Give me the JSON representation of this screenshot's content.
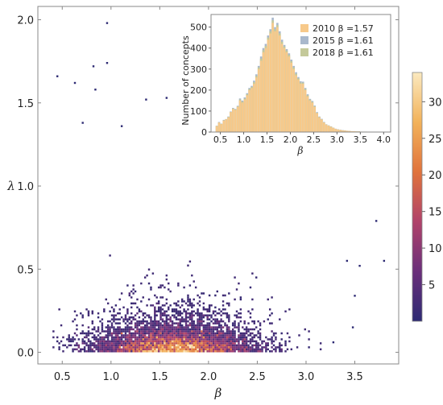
{
  "chart_data": [
    {
      "type": "heatmap",
      "xlabel": "β",
      "ylabel": "λ",
      "xlim": [
        0.25,
        3.95
      ],
      "ylim": [
        -0.07,
        2.08
      ],
      "xticks": [
        "0.5",
        "1.0",
        "1.5",
        "2.0",
        "2.5",
        "3.0",
        "3.5"
      ],
      "yticks": [
        "0.0",
        "0.5",
        "1.0",
        "1.5",
        "2.0"
      ],
      "density_peak": {
        "beta": 1.65,
        "lambda": 0.04
      },
      "colorbar": {
        "min": 0,
        "max": 34,
        "ticks": [
          "5",
          "10",
          "15",
          "20",
          "25",
          "30"
        ],
        "colors": [
          "#2d2a73",
          "#6a2f7a",
          "#b0426a",
          "#e0733c",
          "#f2b25a",
          "#fbe9bf"
        ]
      },
      "outliers": [
        {
          "beta": 0.96,
          "lambda": 1.98
        },
        {
          "beta": 0.96,
          "lambda": 1.74
        },
        {
          "beta": 0.82,
          "lambda": 1.72
        },
        {
          "beta": 0.45,
          "lambda": 1.66
        },
        {
          "beta": 0.63,
          "lambda": 1.62
        },
        {
          "beta": 0.84,
          "lambda": 1.58
        },
        {
          "beta": 1.36,
          "lambda": 1.52
        },
        {
          "beta": 1.57,
          "lambda": 1.53
        },
        {
          "beta": 0.71,
          "lambda": 1.38
        },
        {
          "beta": 1.11,
          "lambda": 1.36
        },
        {
          "beta": 3.72,
          "lambda": 0.79
        },
        {
          "beta": 3.8,
          "lambda": 0.55
        },
        {
          "beta": 3.55,
          "lambda": 0.52
        },
        {
          "beta": 3.42,
          "lambda": 0.55
        },
        {
          "beta": 3.5,
          "lambda": 0.34
        },
        {
          "beta": 3.48,
          "lambda": 0.15
        },
        {
          "beta": 3.28,
          "lambda": 0.06
        }
      ]
    },
    {
      "type": "bar",
      "title": "",
      "xlabel": "β",
      "ylabel": "Number of concepts",
      "xlim": [
        0.3,
        4.15
      ],
      "ylim": [
        0,
        560
      ],
      "xticks": [
        "0.5",
        "1.0",
        "1.5",
        "2.0",
        "2.5",
        "3.0",
        "3.5",
        "4.0"
      ],
      "yticks": [
        "0",
        "100",
        "200",
        "300",
        "400",
        "500"
      ],
      "bin_width": 0.05,
      "bin_start": 0.4,
      "series": [
        {
          "name": "2010 β =1.57",
          "color": "#f7c98a",
          "values": [
            28,
            45,
            38,
            55,
            60,
            70,
            95,
            110,
            105,
            120,
            150,
            140,
            155,
            175,
            200,
            210,
            230,
            260,
            300,
            340,
            380,
            400,
            440,
            470,
            520,
            480,
            500,
            460,
            420,
            400,
            380,
            360,
            330,
            300,
            270,
            250,
            230,
            230,
            200,
            170,
            150,
            140,
            120,
            90,
            70,
            60,
            45,
            35,
            30,
            25,
            20,
            15,
            12,
            10,
            8,
            7,
            6,
            5,
            4,
            4,
            3,
            3,
            2,
            2,
            2,
            1,
            1,
            1,
            1,
            1,
            1,
            1,
            0,
            0,
            0
          ]
        },
        {
          "name": "2015 β =1.61",
          "color": "#a9b8cc",
          "values": [
            30,
            48,
            40,
            58,
            62,
            74,
            98,
            115,
            110,
            125,
            160,
            150,
            165,
            185,
            210,
            220,
            245,
            275,
            315,
            360,
            400,
            420,
            460,
            490,
            545,
            500,
            520,
            480,
            440,
            415,
            395,
            375,
            345,
            315,
            285,
            262,
            242,
            240,
            210,
            180,
            158,
            148,
            126,
            95,
            74,
            63,
            48,
            37,
            32,
            27,
            21,
            16,
            13,
            11,
            9,
            8,
            6,
            5,
            4,
            4,
            3,
            3,
            2,
            2,
            2,
            1,
            1,
            1,
            1,
            1,
            1,
            1,
            0,
            0,
            0
          ]
        },
        {
          "name": "2018 β =1.61",
          "color": "#c4c99a",
          "values": [
            29,
            46,
            39,
            56,
            61,
            72,
            96,
            112,
            108,
            122,
            155,
            145,
            160,
            180,
            205,
            215,
            238,
            268,
            308,
            350,
            390,
            410,
            450,
            480,
            532,
            490,
            510,
            470,
            430,
            408,
            388,
            368,
            338,
            308,
            278,
            256,
            236,
            235,
            205,
            175,
            154,
            144,
            123,
            92,
            72,
            61,
            46,
            36,
            31,
            26,
            20,
            15,
            12,
            10,
            8,
            7,
            6,
            5,
            4,
            4,
            3,
            3,
            2,
            2,
            2,
            1,
            1,
            1,
            1,
            1,
            1,
            1,
            0,
            0,
            0
          ]
        }
      ],
      "legend_position": "top-right"
    }
  ]
}
